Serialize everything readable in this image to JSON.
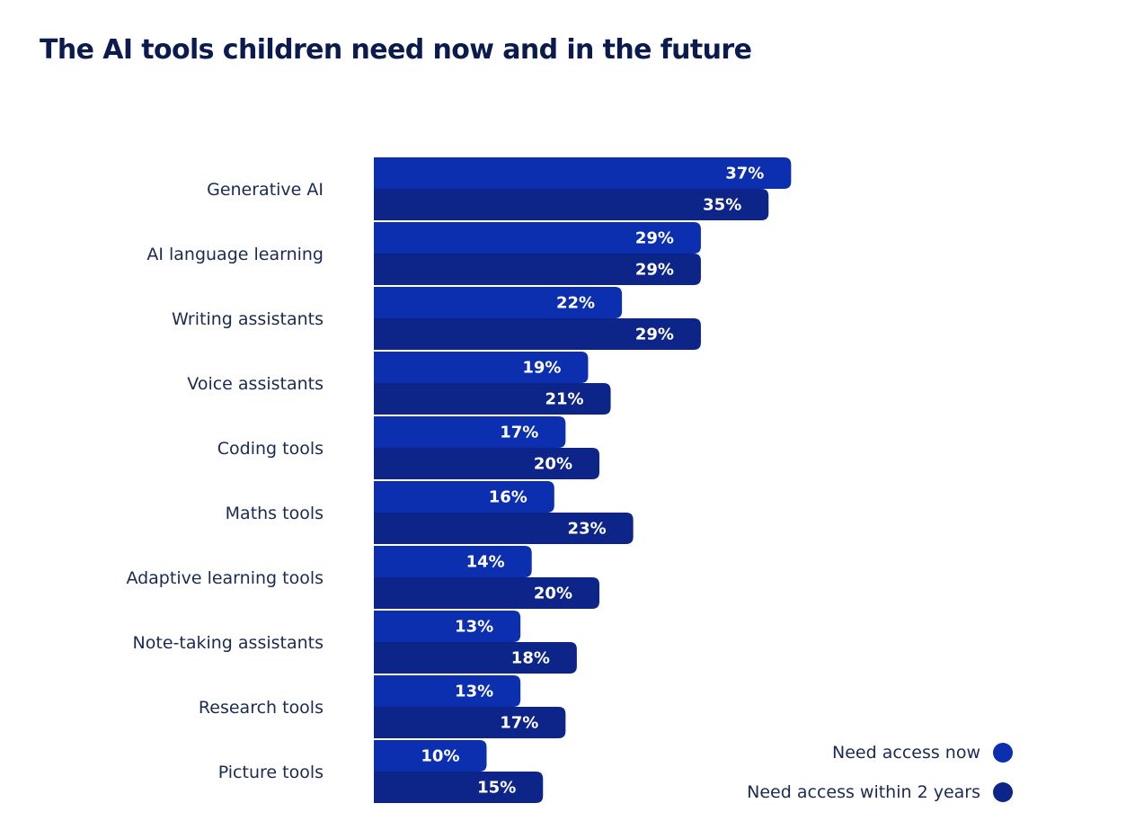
{
  "title": "The AI tools children need now and in the future",
  "colors": {
    "now": "#0c2fb0",
    "future": "#0d2589",
    "text": "#1b2a52",
    "title": "#0b1b4d"
  },
  "chart_data": {
    "type": "bar",
    "orientation": "horizontal",
    "title": "The AI tools children need now and in the future",
    "categories": [
      "Generative AI",
      "AI language learning",
      "Writing assistants",
      "Voice assistants",
      "Coding tools",
      "Maths tools",
      "Adaptive learning tools",
      "Note-taking assistants",
      "Research tools",
      "Picture tools"
    ],
    "series": [
      {
        "name": "Need access now",
        "values": [
          37,
          29,
          22,
          19,
          17,
          16,
          14,
          13,
          13,
          10
        ],
        "labels": [
          "37%",
          "29%",
          "22%",
          "19%",
          "17%",
          "16%",
          "14%",
          "13%",
          "13%",
          "10%"
        ]
      },
      {
        "name": "Need access within 2 years",
        "values": [
          35,
          29,
          29,
          21,
          20,
          23,
          20,
          18,
          17,
          15
        ],
        "labels": [
          "35%",
          "29%",
          "29%",
          "21%",
          "20%",
          "23%",
          "20%",
          "18%",
          "17%",
          "15%"
        ]
      }
    ],
    "unit": "%",
    "legend_position": "bottom-right"
  }
}
